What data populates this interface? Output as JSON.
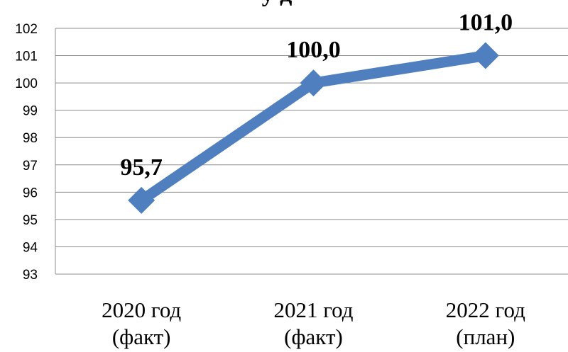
{
  "chart_data": {
    "type": "line",
    "title": "",
    "title_fragment": "у  д",
    "categories": [
      [
        "2020 год",
        "(факт)"
      ],
      [
        "2021 год",
        "(факт)"
      ],
      [
        "2022 год",
        "(план)"
      ]
    ],
    "series": [
      {
        "values": [
          95.7,
          100.0,
          101.0
        ],
        "labels": [
          "95,7",
          "100,0",
          "101,0"
        ],
        "color": "#4F7FBF",
        "marker": "diamond"
      }
    ],
    "ylim": [
      93,
      102
    ],
    "yticks": [
      102,
      101,
      100,
      99,
      98,
      97,
      96,
      95,
      94,
      93
    ],
    "grid": true,
    "xlabel": "",
    "ylabel": ""
  }
}
